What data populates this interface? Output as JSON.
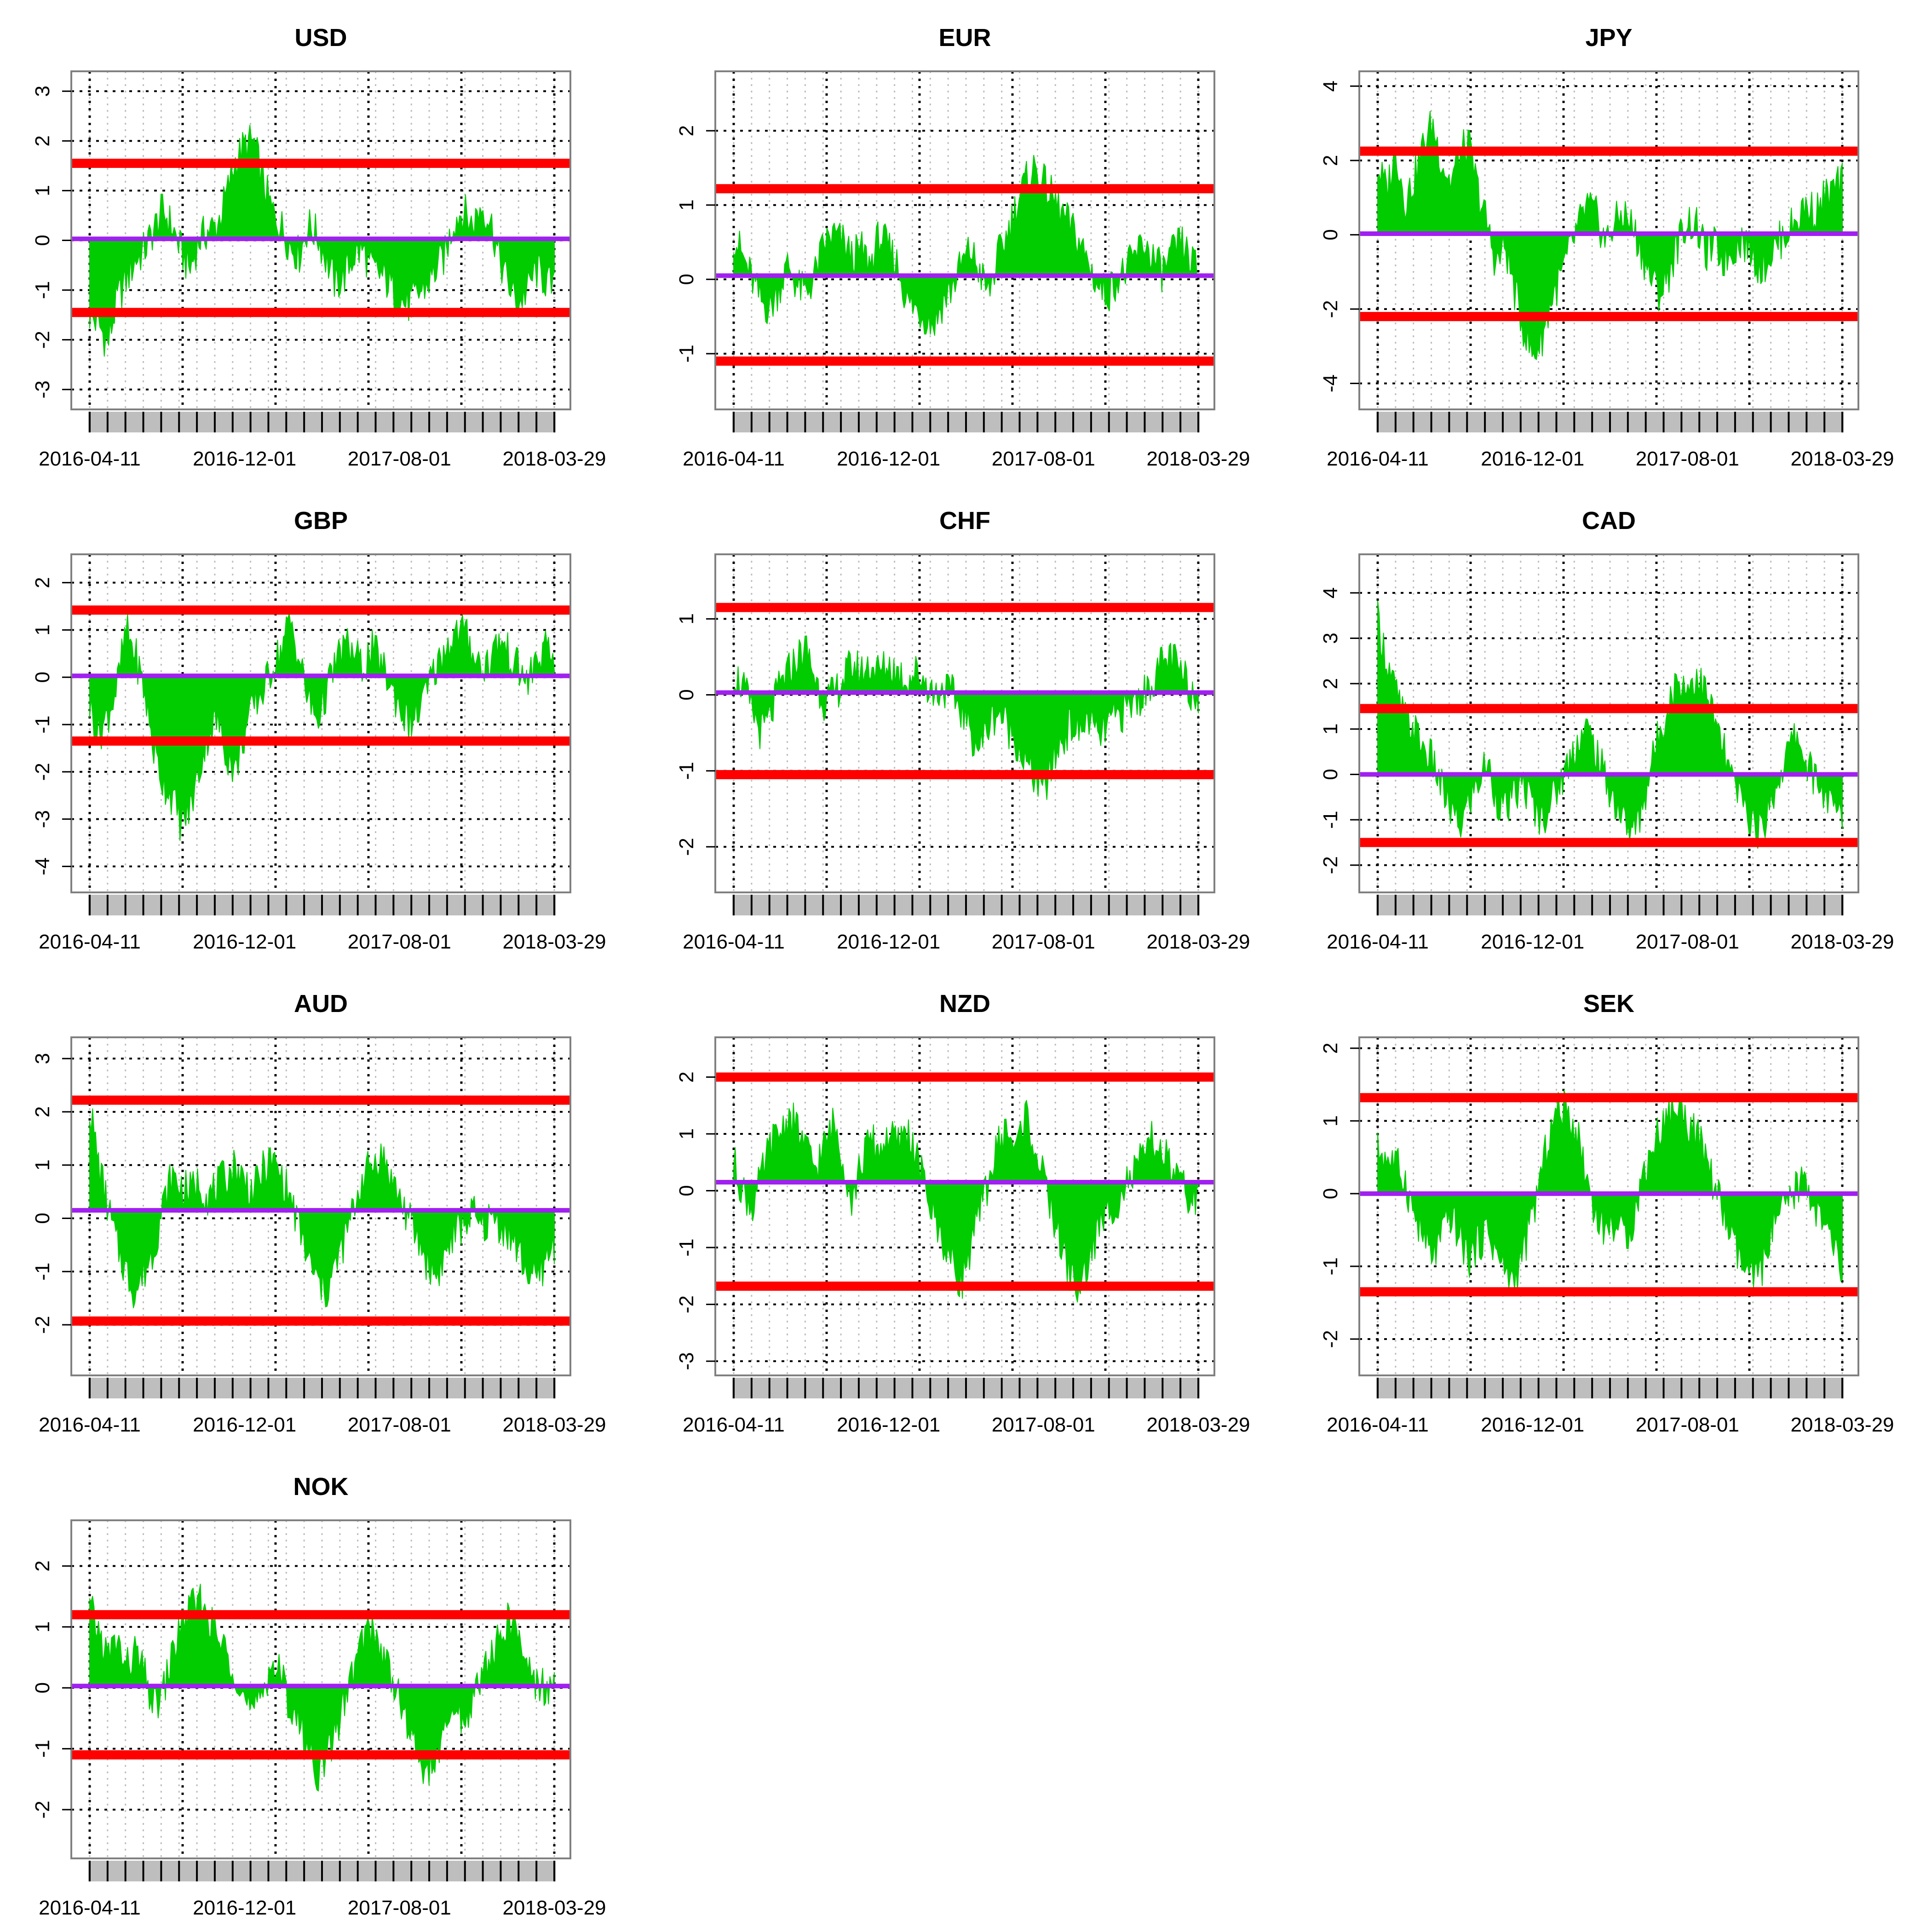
{
  "figure": {
    "x_tick_labels": [
      "2016-04-11",
      "2016-12-01",
      "2017-08-01",
      "2018-03-29"
    ],
    "colors": {
      "area": "#00CC00",
      "band": "#FF0000",
      "mean": "#A020F0",
      "major_grid": "#000000",
      "minor_grid": "#BEBEBE",
      "axis_bar": "#BEBEBE",
      "frame": "#808080"
    }
  },
  "chart_data": [
    {
      "type": "area",
      "title": "USD",
      "ylim": [
        -3.4,
        3.4
      ],
      "yticks": [
        -3,
        -2,
        -1,
        0,
        1,
        2,
        3
      ],
      "mean": 0.03,
      "upper": 1.55,
      "lower": -1.45,
      "x_range": [
        "2016-04-11",
        "2018-03-29"
      ],
      "profile": [
        -1.5,
        -1.7,
        -2.1,
        -1.2,
        -0.8,
        -0.4,
        -0.2,
        0.2,
        0.6,
        0.3,
        -0.2,
        -0.6,
        0.0,
        0.2,
        0.3,
        0.9,
        1.6,
        1.9,
        2.0,
        1.2,
        0.6,
        0.3,
        -0.1,
        -0.3,
        0.3,
        0.1,
        -0.4,
        -0.9,
        -0.7,
        -0.3,
        -0.2,
        -0.6,
        -0.7,
        -0.9,
        -1.2,
        -1.3,
        -1.1,
        -0.9,
        -0.6,
        -0.3,
        0.4,
        0.6,
        0.3,
        0.7,
        0.4,
        -0.4,
        -0.9,
        -1.3,
        -1.0,
        -0.6,
        -0.8,
        -1.0
      ]
    },
    {
      "type": "area",
      "title": "EUR",
      "ylim": [
        -1.75,
        2.8
      ],
      "yticks": [
        -1,
        0,
        1,
        2
      ],
      "mean": 0.05,
      "upper": 1.22,
      "lower": -1.1,
      "x_range": [
        "2016-04-11",
        "2018-03-29"
      ],
      "profile": [
        0.6,
        0.3,
        0.0,
        -0.3,
        -0.4,
        -0.1,
        0.2,
        -0.1,
        -0.2,
        0.1,
        0.5,
        0.6,
        0.5,
        0.3,
        0.4,
        0.2,
        0.6,
        0.4,
        0.2,
        -0.3,
        -0.4,
        -0.5,
        -0.6,
        -0.3,
        -0.1,
        0.2,
        0.4,
        0.1,
        -0.2,
        0.3,
        0.6,
        1.0,
        1.3,
        1.5,
        1.3,
        1.1,
        0.9,
        0.7,
        0.5,
        0.2,
        -0.1,
        -0.2,
        0.0,
        0.1,
        0.3,
        0.5,
        0.3,
        0.1,
        0.3,
        0.5,
        0.3,
        0.1
      ]
    },
    {
      "type": "area",
      "title": "JPY",
      "ylim": [
        -4.7,
        4.4
      ],
      "yticks": [
        -4,
        -2,
        0,
        2,
        4
      ],
      "mean": 0.03,
      "upper": 2.25,
      "lower": -2.2,
      "x_range": [
        "2016-04-11",
        "2018-03-29"
      ],
      "profile": [
        1.8,
        1.2,
        2.3,
        0.9,
        1.5,
        2.4,
        3.0,
        2.0,
        1.4,
        2.2,
        2.4,
        1.2,
        0.3,
        -0.8,
        -0.3,
        -1.5,
        -2.5,
        -3.3,
        -2.8,
        -1.8,
        -1.2,
        -0.5,
        0.2,
        0.8,
        0.5,
        -0.2,
        0.3,
        0.6,
        0.2,
        -0.5,
        -1.2,
        -1.6,
        -1.0,
        -0.2,
        0.4,
        0.2,
        -0.5,
        -0.3,
        -0.7,
        -0.4,
        -0.1,
        -0.5,
        -0.9,
        -0.6,
        -0.2,
        0.1,
        0.4,
        0.8,
        0.6,
        1.0,
        1.2,
        1.4
      ]
    },
    {
      "type": "area",
      "title": "GBP",
      "ylim": [
        -4.55,
        2.6
      ],
      "yticks": [
        -4,
        -3,
        -2,
        -1,
        0,
        1,
        2
      ],
      "mean": 0.03,
      "upper": 1.42,
      "lower": -1.35,
      "x_range": [
        "2016-04-11",
        "2018-03-29"
      ],
      "profile": [
        -0.6,
        -1.2,
        -0.8,
        -0.2,
        1.0,
        0.5,
        -0.3,
        -1.5,
        -2.2,
        -2.5,
        -3.1,
        -2.8,
        -2.0,
        -1.2,
        -0.9,
        -1.6,
        -2.0,
        -1.2,
        -0.6,
        -0.3,
        0.2,
        0.6,
        1.2,
        0.4,
        -0.5,
        -0.9,
        -0.3,
        0.3,
        0.7,
        0.5,
        0.2,
        0.6,
        0.3,
        -0.2,
        -0.6,
        -1.0,
        -0.8,
        -0.3,
        0.2,
        0.6,
        0.9,
        1.0,
        0.6,
        0.2,
        0.4,
        0.8,
        0.5,
        0.2,
        -0.1,
        0.3,
        0.6,
        0.3
      ]
    },
    {
      "type": "area",
      "title": "CHF",
      "ylim": [
        -2.6,
        1.85
      ],
      "yticks": [
        -2,
        -1,
        0,
        1
      ],
      "mean": 0.03,
      "upper": 1.15,
      "lower": -1.05,
      "x_range": [
        "2016-04-11",
        "2018-03-29"
      ],
      "profile": [
        0.3,
        0.1,
        -0.2,
        -0.5,
        -0.3,
        0.1,
        0.3,
        0.5,
        0.6,
        0.2,
        -0.1,
        0.0,
        0.2,
        0.4,
        0.3,
        0.4,
        0.3,
        0.4,
        0.3,
        0.2,
        0.3,
        0.2,
        0.0,
        0.1,
        0.0,
        -0.2,
        -0.5,
        -0.7,
        -0.4,
        -0.2,
        -0.4,
        -0.6,
        -0.9,
        -1.1,
        -1.3,
        -0.9,
        -0.6,
        -0.4,
        -0.5,
        -0.3,
        -0.6,
        -0.4,
        -0.3,
        -0.2,
        -0.1,
        0.0,
        0.2,
        0.4,
        0.5,
        0.3,
        0.1,
        -0.1
      ]
    },
    {
      "type": "area",
      "title": "CAD",
      "ylim": [
        -2.6,
        4.85
      ],
      "yticks": [
        -2,
        -1,
        0,
        1,
        2,
        3,
        4
      ],
      "mean": 0.0,
      "upper": 1.45,
      "lower": -1.5,
      "x_range": [
        "2016-04-11",
        "2018-03-29"
      ],
      "profile": [
        3.4,
        2.5,
        1.8,
        1.2,
        1.0,
        0.6,
        0.3,
        -0.3,
        -0.8,
        -1.2,
        -0.6,
        -0.2,
        0.3,
        -0.5,
        -0.8,
        -0.5,
        -0.2,
        -0.7,
        -1.0,
        -0.6,
        -0.2,
        0.3,
        0.8,
        1.0,
        0.5,
        -0.1,
        -0.6,
        -1.0,
        -1.3,
        -0.8,
        0.2,
        1.0,
        1.6,
        2.1,
        1.9,
        2.2,
        1.8,
        1.2,
        0.5,
        -0.2,
        -0.6,
        -1.0,
        -1.3,
        -0.7,
        -0.1,
        0.5,
        0.9,
        0.3,
        -0.1,
        -0.4,
        -0.8,
        -0.9
      ]
    },
    {
      "type": "area",
      "title": "AUD",
      "ylim": [
        -2.95,
        3.4
      ],
      "yticks": [
        -2,
        -1,
        0,
        1,
        2,
        3
      ],
      "mean": 0.15,
      "upper": 2.22,
      "lower": -1.93,
      "x_range": [
        "2016-04-11",
        "2018-03-29"
      ],
      "profile": [
        2.1,
        1.0,
        0.2,
        -0.5,
        -1.0,
        -1.4,
        -1.0,
        -0.6,
        0.2,
        0.8,
        0.6,
        0.5,
        0.7,
        0.4,
        0.6,
        0.8,
        1.0,
        0.7,
        0.5,
        0.9,
        1.1,
        0.8,
        0.4,
        -0.2,
        -0.8,
        -1.2,
        -1.4,
        -0.9,
        -0.4,
        0.2,
        0.8,
        1.0,
        1.2,
        0.8,
        0.4,
        0.0,
        -0.4,
        -0.8,
        -1.1,
        -0.7,
        -0.3,
        -0.1,
        0.1,
        -0.2,
        0.0,
        -0.1,
        -0.3,
        -0.6,
        -1.0,
        -1.2,
        -0.8,
        -0.5
      ]
    },
    {
      "type": "area",
      "title": "NZD",
      "ylim": [
        -3.25,
        2.7
      ],
      "yticks": [
        -3,
        -2,
        -1,
        0,
        1,
        2
      ],
      "mean": 0.15,
      "upper": 2.0,
      "lower": -1.68,
      "x_range": [
        "2016-04-11",
        "2018-03-29"
      ],
      "profile": [
        0.5,
        0.0,
        -0.3,
        0.2,
        0.8,
        1.0,
        1.3,
        1.1,
        0.7,
        0.4,
        0.8,
        1.2,
        0.6,
        -0.2,
        0.5,
        0.9,
        0.7,
        1.0,
        0.8,
        1.1,
        0.6,
        0.1,
        -0.5,
        -0.9,
        -1.3,
        -1.6,
        -1.0,
        -0.4,
        0.2,
        0.8,
        1.1,
        0.7,
        1.4,
        0.8,
        0.2,
        -0.4,
        -1.0,
        -1.5,
        -1.8,
        -1.2,
        -0.7,
        -0.4,
        -0.2,
        0.1,
        0.3,
        0.6,
        0.9,
        0.7,
        0.4,
        0.1,
        -0.1,
        -0.2
      ]
    },
    {
      "type": "area",
      "title": "SEK",
      "ylim": [
        -2.5,
        2.15
      ],
      "yticks": [
        -2,
        -1,
        0,
        1,
        2
      ],
      "mean": 0.0,
      "upper": 1.32,
      "lower": -1.35,
      "x_range": [
        "2016-04-11",
        "2018-03-29"
      ],
      "profile": [
        0.6,
        0.5,
        0.4,
        0.2,
        -0.3,
        -0.6,
        -0.9,
        -0.6,
        -0.3,
        -0.6,
        -0.9,
        -0.7,
        -0.5,
        -0.8,
        -1.1,
        -1.2,
        -0.8,
        -0.3,
        0.3,
        0.9,
        1.2,
        1.1,
        0.8,
        0.2,
        -0.3,
        -0.5,
        -0.4,
        -0.6,
        -0.4,
        0.2,
        0.6,
        0.9,
        1.1,
        1.2,
        1.0,
        0.8,
        0.5,
        0.1,
        -0.3,
        -0.7,
        -1.0,
        -1.2,
        -1.1,
        -0.6,
        -0.3,
        -0.2,
        0.1,
        0.2,
        -0.2,
        -0.5,
        -0.7,
        -1.1
      ]
    },
    {
      "type": "area",
      "title": "NOK",
      "ylim": [
        -2.8,
        2.75
      ],
      "yticks": [
        -2,
        -1,
        0,
        1,
        2
      ],
      "mean": 0.03,
      "upper": 1.2,
      "lower": -1.1,
      "x_range": [
        "2016-04-11",
        "2018-03-29"
      ],
      "profile": [
        1.3,
        0.9,
        0.5,
        0.8,
        0.3,
        0.6,
        0.2,
        -0.3,
        -0.1,
        0.5,
        1.0,
        1.3,
        1.4,
        1.2,
        0.8,
        0.6,
        0.3,
        -0.2,
        -0.5,
        0.0,
        0.4,
        0.2,
        -0.3,
        -0.6,
        -1.0,
        -1.4,
        -1.2,
        -0.7,
        -0.2,
        0.3,
        0.8,
        1.0,
        0.6,
        0.3,
        -0.2,
        -0.7,
        -1.1,
        -1.4,
        -1.2,
        -0.8,
        -0.3,
        -0.6,
        -0.2,
        0.2,
        0.5,
        0.8,
        1.1,
        0.9,
        0.4,
        0.1,
        0.0,
        0.1
      ]
    }
  ]
}
